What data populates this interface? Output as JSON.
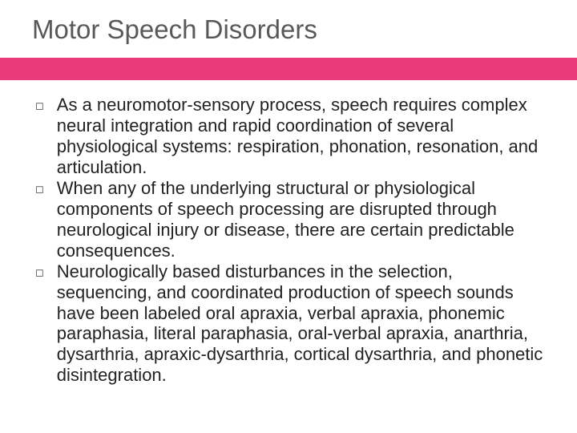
{
  "slide": {
    "title": "Motor Speech Disorders",
    "title_color": "#595959",
    "title_fontsize": 33,
    "accent_bar_color": "#e93b7a",
    "background_color": "#ffffff",
    "body_fontsize": 22,
    "body_color": "#222222",
    "bullet_marker": "◻",
    "bullets": [
      "As a neuromotor-sensory process, speech requires complex neural integration and rapid coordination of several physiological systems:  respiration, phonation, resonation, and articulation.",
      "When any of the underlying structural or physiological components of speech processing are disrupted through neurological injury or disease, there are certain predictable consequences.",
      "Neurologically based disturbances in the selection, sequencing, and coordinated production of speech sounds have been labeled oral apraxia, verbal apraxia, phonemic paraphasia, literal paraphasia, oral-verbal apraxia, anarthria, dysarthria, apraxic-dysarthria, cortical dysarthria, and phonetic disintegration."
    ]
  }
}
